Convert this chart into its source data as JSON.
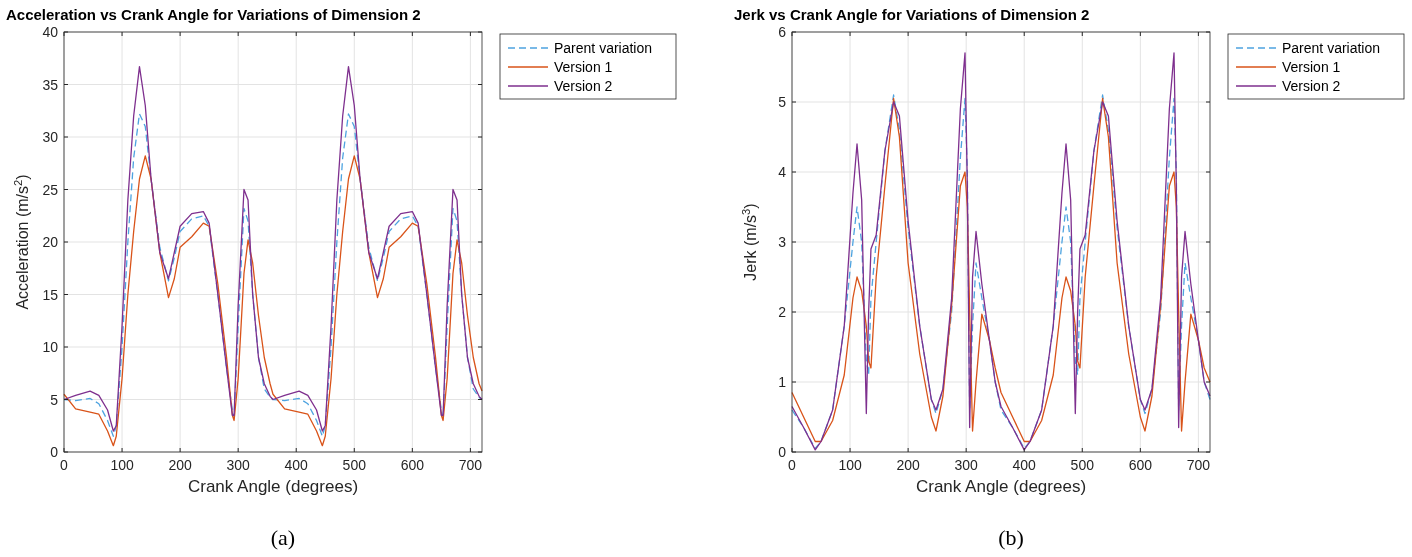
{
  "chart_data": [
    {
      "type": "line",
      "title": "Acceleration vs Crank Angle for Variations of Dimension 2",
      "xlabel": "Crank Angle (degrees)",
      "ylabel": "Acceleration (m/s$^{2}$)",
      "x": [
        0,
        20,
        45,
        60,
        75,
        85,
        90,
        100,
        110,
        120,
        130,
        140,
        150,
        165,
        180,
        190,
        200,
        220,
        240,
        250,
        265,
        280,
        290,
        293,
        300,
        310,
        317,
        325,
        335,
        345,
        355,
        360,
        380,
        405,
        420,
        435,
        445,
        450,
        460,
        470,
        480,
        490,
        500,
        510,
        525,
        540,
        550,
        560,
        580,
        600,
        610,
        625,
        640,
        650,
        653,
        660,
        670,
        677,
        685,
        695,
        705,
        715,
        720
      ],
      "series": [
        {
          "name": "Parent variation",
          "color": "#4da3e0",
          "line_style": "dashed",
          "values": [
            5.0,
            4.9,
            5.1,
            4.6,
            3.0,
            1.5,
            2.5,
            10,
            20,
            28,
            32.2,
            31,
            26,
            19.5,
            16.3,
            18.5,
            21,
            22.2,
            22.5,
            21.5,
            15,
            8,
            4,
            3.3,
            12,
            23.2,
            22,
            15,
            9,
            6,
            5.2,
            5.0,
            4.9,
            5.1,
            4.6,
            3.0,
            1.5,
            2.5,
            10,
            20,
            28,
            32.2,
            31,
            26,
            19.5,
            16.3,
            18.5,
            21,
            22.2,
            22.5,
            21.5,
            15,
            8,
            4,
            3.3,
            12,
            23.2,
            22,
            15,
            9,
            6,
            5.2,
            5.0
          ]
        },
        {
          "name": "Version 1",
          "color": "#d95319",
          "line_style": "solid",
          "values": [
            5.5,
            4.1,
            3.8,
            3.6,
            2.0,
            0.6,
            1.5,
            7,
            15,
            21,
            26,
            28.2,
            26,
            19,
            14.7,
            16.5,
            19.5,
            20.5,
            21.8,
            21.5,
            16,
            9,
            3.5,
            3.0,
            7,
            17,
            20.2,
            18,
            13,
            9,
            6.5,
            5.5,
            4.1,
            3.8,
            3.6,
            2.0,
            0.6,
            1.5,
            7,
            15,
            21,
            26,
            28.2,
            26,
            19,
            14.7,
            16.5,
            19.5,
            20.5,
            21.8,
            21.5,
            16,
            9,
            3.5,
            3.0,
            7,
            17,
            20.2,
            18,
            13,
            9,
            6.5,
            5.8
          ]
        },
        {
          "name": "Version 2",
          "color": "#7e2f8e",
          "line_style": "solid",
          "values": [
            5.0,
            5.4,
            5.8,
            5.4,
            4.0,
            2.0,
            2.5,
            12,
            24,
            32,
            36.7,
            33,
            26,
            19,
            16.5,
            19,
            21.5,
            22.7,
            22.9,
            21.8,
            15,
            8,
            3.5,
            3.5,
            14,
            25,
            24,
            15,
            9,
            6.5,
            5.3,
            5.0,
            5.4,
            5.8,
            5.4,
            4.0,
            2.0,
            2.5,
            12,
            24,
            32,
            36.7,
            33,
            26,
            19,
            16.5,
            19,
            21.5,
            22.7,
            22.9,
            21.8,
            15,
            8,
            3.5,
            3.5,
            14,
            25,
            24,
            15,
            9,
            6.5,
            5.3,
            5.0
          ]
        }
      ],
      "xlim": [
        0,
        720
      ],
      "xticks": [
        0,
        100,
        200,
        300,
        400,
        500,
        600,
        700
      ],
      "ylim": [
        0,
        40
      ],
      "yticks": [
        0,
        5,
        10,
        15,
        20,
        25,
        30,
        35,
        40
      ],
      "grid": true,
      "legend": "right",
      "annotations": [
        "(a)"
      ]
    },
    {
      "type": "line",
      "title": "Jerk vs Crank Angle for Variations of Dimension 2",
      "xlabel": "Crank Angle (degrees)",
      "ylabel": "Jerk (m/s$^{3}$)",
      "x": [
        0,
        20,
        40,
        50,
        70,
        90,
        105,
        112,
        120,
        128,
        132,
        136,
        145,
        160,
        175,
        185,
        200,
        220,
        240,
        248,
        260,
        275,
        290,
        298,
        302,
        306,
        311,
        317,
        327,
        340,
        350,
        360,
        380,
        400,
        410,
        430,
        450,
        465,
        472,
        480,
        488,
        492,
        496,
        505,
        520,
        535,
        545,
        560,
        580,
        600,
        608,
        620,
        635,
        650,
        658,
        662,
        666,
        671,
        677,
        687,
        700,
        710,
        720
      ],
      "series": [
        {
          "name": "Parent variation",
          "color": "#4da3e0",
          "line_style": "dashed",
          "values": [
            0.6,
            0.35,
            0.05,
            0.15,
            0.6,
            1.8,
            3.0,
            3.5,
            3.0,
            1.3,
            1.1,
            2.2,
            3.0,
            4.3,
            5.1,
            4.6,
            3.2,
            1.8,
            0.75,
            0.55,
            0.9,
            2.0,
            4.2,
            5.05,
            4.0,
            0.6,
            1.8,
            2.7,
            2.2,
            1.6,
            1.0,
            0.6,
            0.35,
            0.05,
            0.15,
            0.6,
            1.8,
            3.0,
            3.5,
            3.0,
            1.3,
            1.1,
            2.2,
            3.0,
            4.3,
            5.1,
            4.6,
            3.2,
            1.8,
            0.75,
            0.55,
            0.9,
            2.0,
            4.2,
            5.05,
            4.0,
            0.6,
            1.8,
            2.7,
            2.2,
            1.6,
            1.0,
            0.75
          ]
        },
        {
          "name": "Version 1",
          "color": "#d95319",
          "line_style": "solid",
          "values": [
            0.85,
            0.5,
            0.15,
            0.15,
            0.45,
            1.1,
            2.2,
            2.5,
            2.3,
            1.8,
            1.3,
            1.2,
            2.5,
            3.8,
            5.05,
            4.5,
            2.7,
            1.4,
            0.5,
            0.3,
            0.8,
            2.1,
            3.8,
            4.0,
            3.5,
            2.0,
            0.3,
            1.0,
            1.97,
            1.6,
            1.2,
            0.85,
            0.5,
            0.15,
            0.15,
            0.45,
            1.1,
            2.2,
            2.5,
            2.3,
            1.8,
            1.3,
            1.2,
            2.5,
            3.8,
            5.05,
            4.5,
            2.7,
            1.4,
            0.5,
            0.3,
            0.8,
            2.1,
            3.8,
            4.0,
            3.5,
            2.0,
            0.3,
            1.0,
            1.97,
            1.6,
            1.2,
            1.0
          ]
        },
        {
          "name": "Version 2",
          "color": "#7e2f8e",
          "line_style": "solid",
          "values": [
            0.65,
            0.35,
            0.03,
            0.15,
            0.6,
            1.8,
            3.7,
            4.4,
            3.6,
            0.55,
            2.0,
            2.9,
            3.1,
            4.3,
            5.0,
            4.8,
            3.3,
            1.8,
            0.75,
            0.6,
            0.9,
            2.2,
            4.9,
            5.7,
            3.8,
            0.35,
            2.5,
            3.15,
            2.4,
            1.6,
            1.0,
            0.65,
            0.35,
            0.03,
            0.15,
            0.6,
            1.8,
            3.7,
            4.4,
            3.6,
            0.55,
            2.0,
            2.9,
            3.1,
            4.3,
            5.0,
            4.8,
            3.3,
            1.8,
            0.75,
            0.6,
            0.9,
            2.2,
            4.9,
            5.7,
            3.8,
            0.35,
            2.5,
            3.15,
            2.4,
            1.6,
            1.0,
            0.8
          ]
        }
      ],
      "xlim": [
        0,
        720
      ],
      "xticks": [
        0,
        100,
        200,
        300,
        400,
        500,
        600,
        700
      ],
      "ylim": [
        0,
        6
      ],
      "yticks": [
        0,
        1,
        2,
        3,
        4,
        5,
        6
      ],
      "grid": true,
      "legend": "right",
      "annotations": [
        "(b)"
      ]
    }
  ]
}
